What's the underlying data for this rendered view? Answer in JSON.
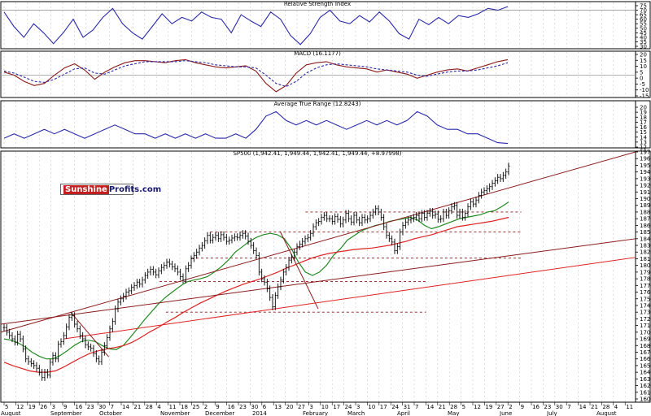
{
  "chart_data": [
    {
      "type": "line",
      "title": "Relative Strength Index",
      "ylim": [
        30,
        75
      ],
      "yticks": [
        "75",
        "70",
        "65",
        "60",
        "55",
        "50",
        "45",
        "40",
        "35",
        "30"
      ],
      "reference_line": 70,
      "series": [
        {
          "values": [
            68,
            52,
            40,
            55,
            45,
            33,
            45,
            60,
            40,
            48,
            62,
            72,
            55,
            45,
            38,
            52,
            66,
            55,
            62,
            58,
            68,
            62,
            60,
            45,
            65,
            58,
            52,
            68,
            60,
            42,
            32,
            44,
            62,
            70,
            58,
            55,
            64,
            57,
            68,
            58,
            44,
            38,
            60,
            54,
            62,
            55,
            64,
            62,
            66,
            72,
            70,
            74
          ]
        }
      ]
    },
    {
      "type": "line",
      "title": "MACD (16.1177)",
      "ylim": [
        -20,
        20
      ],
      "yticks": [
        "20",
        "15",
        "10",
        "5",
        "0",
        "-5",
        "-10",
        "-15"
      ],
      "reference_line": 0,
      "series": [
        {
          "color": "#8b1a1a",
          "values": [
            3,
            0,
            -6,
            -10,
            -8,
            0,
            7,
            11,
            5,
            -4,
            3,
            8,
            12,
            14,
            14,
            13,
            12,
            14,
            15,
            12,
            10,
            8,
            7,
            8,
            9,
            4,
            -8,
            -16,
            -10,
            2,
            10,
            12,
            13,
            10,
            8,
            7,
            6,
            3,
            5,
            3,
            1,
            -3,
            0,
            3,
            5,
            6,
            4,
            7,
            10,
            13,
            15
          ]
        },
        {
          "color": "#2a2aaa",
          "values": [
            4,
            2,
            -2,
            -6,
            -7,
            -4,
            1,
            6,
            7,
            2,
            1,
            5,
            9,
            11,
            13,
            13,
            13,
            13,
            14,
            13,
            12,
            10,
            9,
            8,
            8,
            7,
            0,
            -8,
            -11,
            -6,
            2,
            7,
            10,
            11,
            10,
            9,
            8,
            6,
            5,
            4,
            3,
            0,
            -1,
            1,
            3,
            4,
            4,
            5,
            7,
            9,
            12
          ]
        }
      ]
    },
    {
      "type": "line",
      "title": "Average True Range (12.8243)",
      "ylim": [
        12,
        21
      ],
      "yticks": [
        "20",
        "19",
        "18",
        "17",
        "16",
        "15",
        "14",
        "13",
        "12"
      ],
      "series": [
        {
          "values": [
            14,
            15,
            14,
            15,
            16,
            15,
            16,
            15,
            14,
            15,
            16,
            17,
            16,
            15,
            15,
            14,
            15,
            14,
            15,
            14,
            15,
            14,
            14,
            15,
            14,
            16,
            19,
            20,
            18,
            17,
            18,
            17,
            18,
            17,
            16,
            17,
            18,
            17,
            18,
            17,
            18,
            20,
            19,
            17,
            16,
            16,
            15,
            15,
            14,
            13,
            12.8
          ]
        }
      ]
    },
    {
      "type": "line",
      "title": "SP500 (1,942.41, 1,949.44, 1,942.41, 1,949.44, +8.97998)",
      "ylim": [
        1600,
        1970
      ],
      "yticks": [
        "1970",
        "1960",
        "1950",
        "1940",
        "1930",
        "1920",
        "1910",
        "1900",
        "1890",
        "1880",
        "1870",
        "1860",
        "1850",
        "1840",
        "1830",
        "1820",
        "1810",
        "1800",
        "1790",
        "1780",
        "1770",
        "1760",
        "1750",
        "1740",
        "1730",
        "1720",
        "1710",
        "1700",
        "1690",
        "1680",
        "1670",
        "1660",
        "1650",
        "1640",
        "1630",
        "1620",
        "1610",
        "1600"
      ],
      "x_date_labels": [
        "5",
        "12",
        "19",
        "26",
        "3",
        "9",
        "16",
        "23",
        "30",
        "7",
        "14",
        "21",
        "28",
        "4",
        "11",
        "18",
        "25",
        "2",
        "9",
        "16",
        "23",
        "30",
        "6",
        "13",
        "20",
        "27",
        "3",
        "10",
        "17",
        "24",
        "3",
        "10",
        "17",
        "24",
        "31",
        "7",
        "14",
        "21",
        "28",
        "5",
        "12",
        "19",
        "27",
        "2",
        "9",
        "16",
        "23",
        "30",
        "7",
        "14",
        "21",
        "28",
        "4",
        "11"
      ],
      "months": [
        "August",
        "September",
        "October",
        "November",
        "December",
        "2014",
        "February",
        "March",
        "April",
        "May",
        "June",
        "July",
        "August"
      ],
      "price_series": {
        "name": "",
        "close": [
          1707,
          1700,
          1695,
          1690,
          1685,
          1697,
          1690,
          1675,
          1660,
          1656,
          1653,
          1650,
          1646,
          1640,
          1632,
          1640,
          1636,
          1655,
          1665,
          1660,
          1682,
          1686,
          1695,
          1708,
          1722,
          1725,
          1712,
          1705,
          1695,
          1690,
          1681,
          1678,
          1676,
          1668,
          1660,
          1656,
          1670,
          1680,
          1692,
          1705,
          1716,
          1735,
          1745,
          1750,
          1754,
          1760,
          1762,
          1767,
          1770,
          1775,
          1772,
          1778,
          1785,
          1790,
          1794,
          1790,
          1786,
          1792,
          1797,
          1800,
          1805,
          1802,
          1798,
          1795,
          1790,
          1783,
          1778,
          1795,
          1800,
          1810,
          1815,
          1820,
          1826,
          1830,
          1837,
          1845,
          1838,
          1842,
          1845,
          1840,
          1846,
          1842,
          1836,
          1838,
          1841,
          1843,
          1842,
          1845,
          1848,
          1844,
          1836,
          1830,
          1822,
          1815,
          1790,
          1780,
          1775,
          1765,
          1752,
          1738,
          1755,
          1768,
          1778,
          1790,
          1797,
          1808,
          1812,
          1820,
          1828,
          1832,
          1836,
          1840,
          1842,
          1848,
          1858,
          1864,
          1866,
          1872,
          1875,
          1870,
          1870,
          1866,
          1873,
          1869,
          1862,
          1868,
          1878,
          1870,
          1865,
          1875,
          1868,
          1864,
          1872,
          1868,
          1870,
          1875,
          1880,
          1885,
          1880,
          1872,
          1858,
          1845,
          1840,
          1835,
          1822,
          1828,
          1850,
          1860,
          1865,
          1868,
          1870,
          1872,
          1875,
          1870,
          1878,
          1872,
          1878,
          1881,
          1875,
          1877,
          1869,
          1870,
          1880,
          1875,
          1882,
          1888,
          1890,
          1875,
          1880,
          1872,
          1878,
          1888,
          1895,
          1892,
          1898,
          1905,
          1910,
          1912,
          1915,
          1918,
          1923,
          1927,
          1932,
          1930,
          1935,
          1940,
          1949
        ]
      },
      "moving_averages": [
        {
          "color": "#228b22",
          "values": [
            1690,
            1688,
            1684,
            1678,
            1670,
            1664,
            1660,
            1660,
            1665,
            1672,
            1680,
            1686,
            1688,
            1686,
            1680,
            1675,
            1674,
            1680,
            1692,
            1705,
            1718,
            1730,
            1742,
            1752,
            1760,
            1768,
            1775,
            1778,
            1780,
            1783,
            1790,
            1798,
            1808,
            1820,
            1828,
            1836,
            1842,
            1846,
            1848,
            1846,
            1840,
            1825,
            1805,
            1790,
            1785,
            1790,
            1800,
            1815,
            1825,
            1838,
            1845,
            1852,
            1856,
            1860,
            1862,
            1866,
            1868,
            1870,
            1872,
            1868,
            1860,
            1855,
            1858,
            1862,
            1866,
            1870,
            1872,
            1874,
            1876,
            1880,
            1882,
            1888,
            1895
          ]
        },
        {
          "color": "#dd2222",
          "values": [
            1655,
            1650,
            1646,
            1642,
            1640,
            1640,
            1642,
            1648,
            1655,
            1662,
            1668,
            1672,
            1675,
            1677,
            1680,
            1685,
            1692,
            1700,
            1707,
            1715,
            1722,
            1730,
            1737,
            1744,
            1750,
            1756,
            1762,
            1767,
            1772,
            1776,
            1780,
            1785,
            1790,
            1796,
            1801,
            1806,
            1811,
            1815,
            1818,
            1820,
            1822,
            1824,
            1825,
            1826,
            1828,
            1830,
            1833,
            1836,
            1840,
            1843,
            1846,
            1850,
            1854,
            1858,
            1860,
            1862,
            1864,
            1866,
            1869,
            1872
          ]
        }
      ],
      "trend_lines": [
        {
          "color": "#8b1a1a",
          "from": [
            0,
            1700
          ],
          "to": [
            1.0,
            1970
          ]
        },
        {
          "color": "#8b1a1a",
          "from": [
            0,
            1712
          ],
          "to": [
            1.0,
            1840
          ]
        },
        {
          "color": "#dd2222",
          "from": [
            0.1,
            1690
          ],
          "to": [
            1.0,
            1812
          ]
        },
        {
          "color": "#8b1a1a",
          "from": [
            0.11,
            1730
          ],
          "to": [
            0.17,
            1663
          ]
        },
        {
          "color": "#8b1a1a",
          "from": [
            0.44,
            1851
          ],
          "to": [
            0.5,
            1735
          ]
        }
      ],
      "support_levels": [
        {
          "value": 1880,
          "from": 0.48,
          "to": 0.82
        },
        {
          "value": 1850,
          "from": 0.33,
          "to": 0.82
        },
        {
          "value": 1811,
          "from": 0.3,
          "to": 0.82
        },
        {
          "value": 1776,
          "from": 0.25,
          "to": 0.67
        },
        {
          "value": 1730,
          "from": 0.26,
          "to": 0.67
        }
      ]
    }
  ],
  "logo": {
    "part1": "Sunshine",
    "part2": "Profits.com"
  }
}
